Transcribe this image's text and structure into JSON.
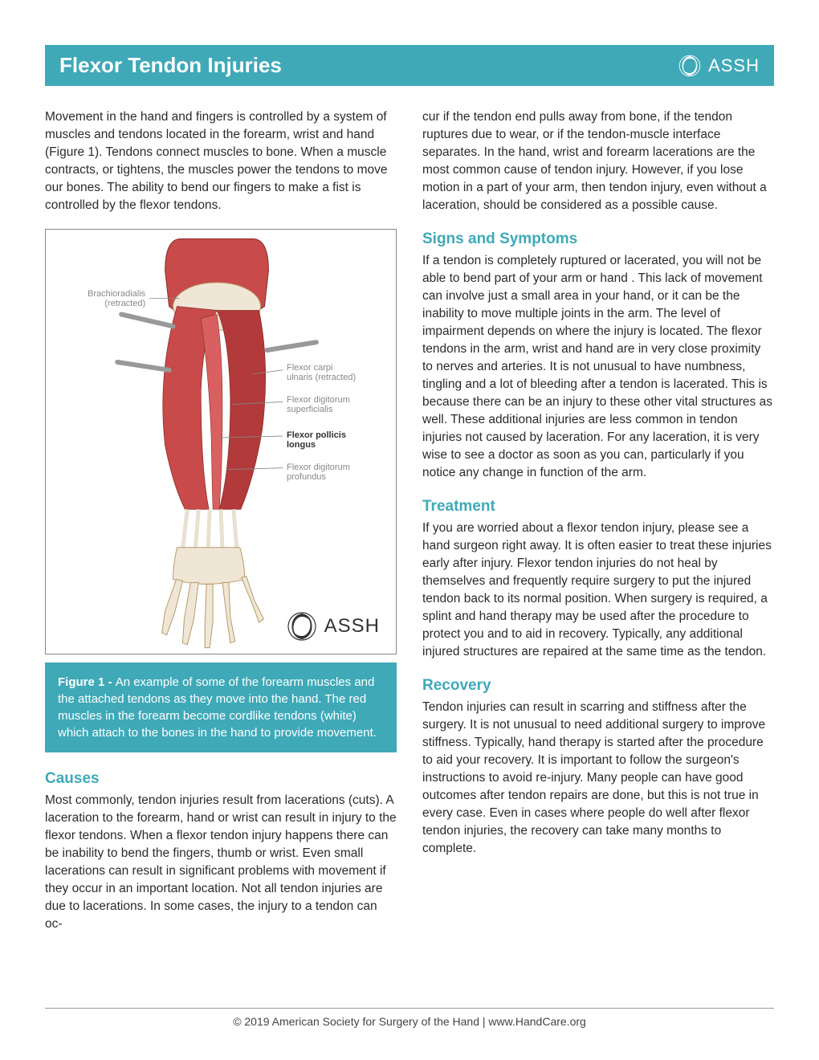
{
  "header": {
    "title": "Flexor Tendon Injuries",
    "logo_text": "ASSH"
  },
  "colors": {
    "accent": "#3fa9b8",
    "text": "#2b2b2b",
    "label_gray": "#888888",
    "muscle": "#c84a4a",
    "bone": "#efe6d6",
    "outline": "#7a5a3a"
  },
  "intro": "Movement in the hand and fingers is controlled by a system of muscles and tendons located in the forearm, wrist and hand (Figure 1). Tendons connect muscles to bone. When a muscle contracts, or tightens, the muscles power the tendons to move our bones.  The ability to bend our fingers to make a fist is controlled by the flexor tendons.",
  "figure": {
    "caption_bold": "Figure 1 - ",
    "caption": "An example of some of the forearm muscles and the attached tendons as they move into the hand.  The red muscles in the forearm become cordlike tendons (white) which attach to the bones in the hand to provide movement.",
    "labels": {
      "brachioradialis": "Brachioradialis\n(retracted)",
      "flexor_carpi": "Flexor carpi\nulnaris (retracted)",
      "flexor_dig_sup": "Flexor digitorum\nsuperficialis",
      "flexor_pollicis": "Flexor pollicis\nlongus",
      "flexor_dig_prof": "Flexor digitorum\nprofundus"
    },
    "logo_text": "ASSH"
  },
  "sections": {
    "causes": {
      "heading": "Causes",
      "body": "Most commonly, tendon injuries result from lacerations (cuts).  A laceration to the forearm, hand or wrist can result in injury to the flexor tendons.  When a flexor tendon injury happens there can be inability to bend the fingers, thumb or wrist. Even small lacerations can result in significant problems with movement if they occur in an important location.  Not all tendon injuries are due to lacerations.  In some cases, the injury to a tendon can oc-"
    },
    "causes_cont": "cur if the tendon end pulls away from bone, if the tendon ruptures due to wear, or if the tendon-muscle interface separates.  In the hand, wrist and forearm lacerations are the most common cause of tendon injury.  However, if you lose motion in a part of your arm, then tendon injury, even without a laceration, should be considered as a possible cause.",
    "signs": {
      "heading": "Signs and Symptoms",
      "body": "If a tendon is completely ruptured or lacerated, you will not be able to bend part of your arm or hand .  This lack of movement can involve just a small area in your hand, or it can be the inability to move multiple joints in the arm. The level of impairment depends on where the injury is located.  The flexor tendons in the arm, wrist and hand are in very close proximity to nerves and arteries.  It is not unusual to have numbness, tingling and a lot of bleeding after a tendon is lacerated. This is because there can be an injury to these other vital structures as well.  These additional injuries are less common in tendon injuries not caused by laceration.  For any laceration, it is very wise to see a doctor as soon as you can, particularly if you notice any change in function of the arm."
    },
    "treatment": {
      "heading": "Treatment",
      "body": "If you are worried about a flexor tendon injury, please see a hand surgeon right away.  It is often easier to treat these injuries early after injury.  Flexor tendon injuries do not heal by themselves and frequently require surgery to put the injured tendon back to its normal position.  When surgery is required, a splint and hand therapy may be used after the procedure to protect you and to aid in recovery. Typically, any additional injured structures are repaired at the same time as the tendon."
    },
    "recovery": {
      "heading": "Recovery",
      "body": "Tendon injuries can result in scarring and stiffness after the surgery.  It is not unusual to need additional surgery to improve stiffness.  Typically, hand therapy is started after the procedure to aid your recovery.  It is important to follow the surgeon's instructions to avoid re-injury.  Many people can have good outcomes after tendon repairs are done, but this is not true in every case.  Even in cases where people do well after flexor tendon injuries, the recovery can take many months to complete."
    }
  },
  "footer": "© 2019 American Society for Surgery of the Hand | www.HandCare.org"
}
